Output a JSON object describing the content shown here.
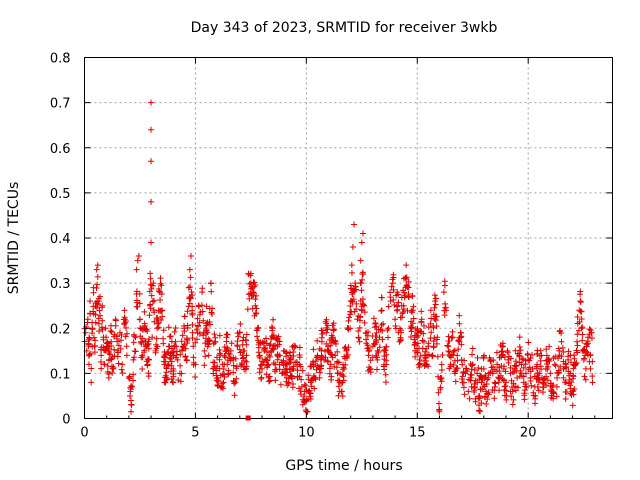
{
  "chart_data": {
    "type": "scatter",
    "title": "Day 343 of 2023, SRMTID for receiver 3wkb",
    "xlabel": "GPS time / hours",
    "ylabel": "SRMTID / TECUs",
    "xlim": [
      0,
      23.8
    ],
    "ylim": [
      0,
      0.8
    ],
    "xticks": [
      0,
      5,
      10,
      15,
      20
    ],
    "yticks": [
      0,
      0.1,
      0.2,
      0.3,
      0.4,
      0.5,
      0.6,
      0.7,
      0.8
    ],
    "xtick_labels": [
      "0",
      "5",
      "10",
      "15",
      "20"
    ],
    "ytick_labels": [
      "0",
      "0.1",
      "0.2",
      "0.3",
      "0.4",
      "0.5",
      "0.6",
      "0.7",
      "0.8"
    ],
    "grid": true,
    "marker": "+",
    "colors": {
      "series": "#e00000",
      "grid": "#a0a0a0",
      "axis": "#000000"
    },
    "series": [
      {
        "name": "SRMTID",
        "points": [
          [
            0.05,
            0.19
          ],
          [
            0.1,
            0.15
          ],
          [
            0.15,
            0.22
          ],
          [
            0.2,
            0.12
          ],
          [
            0.25,
            0.26
          ],
          [
            0.3,
            0.08
          ],
          [
            0.35,
            0.2
          ],
          [
            0.4,
            0.29
          ],
          [
            0.45,
            0.16
          ],
          [
            0.5,
            0.23
          ],
          [
            0.55,
            0.33
          ],
          [
            0.6,
            0.34
          ],
          [
            0.65,
            0.21
          ],
          [
            0.7,
            0.27
          ],
          [
            0.75,
            0.14
          ],
          [
            0.8,
            0.25
          ],
          [
            0.85,
            0.18
          ],
          [
            0.9,
            0.12
          ],
          [
            0.95,
            0.2
          ],
          [
            1.0,
            0.16
          ],
          [
            1.1,
            0.13
          ],
          [
            1.2,
            0.17
          ],
          [
            1.3,
            0.11
          ],
          [
            1.4,
            0.22
          ],
          [
            1.5,
            0.15
          ],
          [
            1.6,
            0.19
          ],
          [
            1.7,
            0.12
          ],
          [
            1.8,
            0.21
          ],
          [
            1.9,
            0.16
          ],
          [
            2.0,
            0.09
          ],
          [
            2.05,
            0.05
          ],
          [
            2.1,
            0.04
          ],
          [
            2.15,
            0.07
          ],
          [
            2.2,
            0.13
          ],
          [
            2.3,
            0.18
          ],
          [
            2.35,
            0.33
          ],
          [
            2.4,
            0.35
          ],
          [
            2.45,
            0.36
          ],
          [
            2.5,
            0.22
          ],
          [
            2.55,
            0.17
          ],
          [
            2.6,
            0.14
          ],
          [
            2.7,
            0.2
          ],
          [
            2.8,
            0.16
          ],
          [
            2.9,
            0.13
          ],
          [
            2.95,
            0.25
          ],
          [
            3.0,
            0.39
          ],
          [
            3.0,
            0.48
          ],
          [
            3.0,
            0.57
          ],
          [
            3.0,
            0.64
          ],
          [
            3.0,
            0.7
          ],
          [
            3.05,
            0.18
          ],
          [
            3.1,
            0.3
          ],
          [
            3.2,
            0.15
          ],
          [
            3.3,
            0.21
          ],
          [
            3.4,
            0.28
          ],
          [
            3.5,
            0.24
          ],
          [
            3.6,
            0.12
          ],
          [
            3.7,
            0.09
          ],
          [
            3.8,
            0.16
          ],
          [
            3.9,
            0.14
          ],
          [
            4.0,
            0.11
          ],
          [
            4.1,
            0.17
          ],
          [
            4.2,
            0.13
          ],
          [
            4.3,
            0.1
          ],
          [
            4.4,
            0.15
          ],
          [
            4.5,
            0.2
          ],
          [
            4.6,
            0.13
          ],
          [
            4.7,
            0.29
          ],
          [
            4.75,
            0.33
          ],
          [
            4.8,
            0.36
          ],
          [
            4.9,
            0.16
          ],
          [
            5.0,
            0.12
          ],
          [
            5.1,
            0.19
          ],
          [
            5.2,
            0.23
          ],
          [
            5.3,
            0.28
          ],
          [
            5.4,
            0.15
          ],
          [
            5.5,
            0.21
          ],
          [
            5.6,
            0.14
          ],
          [
            5.7,
            0.3
          ],
          [
            5.8,
            0.11
          ],
          [
            5.9,
            0.17
          ],
          [
            6.0,
            0.09
          ],
          [
            6.1,
            0.14
          ],
          [
            6.2,
            0.07
          ],
          [
            6.3,
            0.12
          ],
          [
            6.4,
            0.18
          ],
          [
            6.5,
            0.1
          ],
          [
            6.6,
            0.15
          ],
          [
            6.7,
            0.13
          ],
          [
            6.8,
            0.08
          ],
          [
            6.9,
            0.16
          ],
          [
            7.0,
            0.19
          ],
          [
            7.1,
            0.12
          ],
          [
            7.2,
            0.15
          ],
          [
            7.3,
            0.14
          ],
          [
            7.4,
            0.32
          ],
          [
            7.5,
            0.3
          ],
          [
            7.6,
            0.28
          ],
          [
            7.7,
            0.25
          ],
          [
            7.8,
            0.2
          ],
          [
            7.9,
            0.14
          ],
          [
            8.0,
            0.11
          ],
          [
            8.1,
            0.17
          ],
          [
            8.2,
            0.13
          ],
          [
            8.3,
            0.09
          ],
          [
            8.4,
            0.15
          ],
          [
            8.5,
            0.18
          ],
          [
            8.6,
            0.12
          ],
          [
            8.7,
            0.16
          ],
          [
            8.8,
            0.14
          ],
          [
            8.9,
            0.1
          ],
          [
            9.0,
            0.15
          ],
          [
            9.1,
            0.12
          ],
          [
            9.2,
            0.08
          ],
          [
            9.3,
            0.13
          ],
          [
            9.4,
            0.11
          ],
          [
            9.5,
            0.16
          ],
          [
            9.6,
            0.09
          ],
          [
            9.7,
            0.12
          ],
          [
            9.8,
            0.07
          ],
          [
            9.9,
            0.05
          ],
          [
            10.0,
            0.04
          ],
          [
            10.1,
            0.06
          ],
          [
            10.2,
            0.08
          ],
          [
            10.3,
            0.12
          ],
          [
            10.4,
            0.09
          ],
          [
            10.5,
            0.14
          ],
          [
            10.6,
            0.11
          ],
          [
            10.7,
            0.17
          ],
          [
            10.8,
            0.13
          ],
          [
            10.9,
            0.19
          ],
          [
            11.0,
            0.15
          ],
          [
            11.1,
            0.12
          ],
          [
            11.2,
            0.18
          ],
          [
            11.3,
            0.14
          ],
          [
            11.4,
            0.1
          ],
          [
            11.5,
            0.08
          ],
          [
            11.6,
            0.06
          ],
          [
            11.7,
            0.11
          ],
          [
            11.8,
            0.15
          ],
          [
            11.9,
            0.2
          ],
          [
            12.0,
            0.26
          ],
          [
            12.05,
            0.34
          ],
          [
            12.1,
            0.38
          ],
          [
            12.15,
            0.43
          ],
          [
            12.2,
            0.3
          ],
          [
            12.3,
            0.22
          ],
          [
            12.4,
            0.17
          ],
          [
            12.45,
            0.35
          ],
          [
            12.5,
            0.39
          ],
          [
            12.55,
            0.41
          ],
          [
            12.6,
            0.25
          ],
          [
            12.7,
            0.19
          ],
          [
            12.8,
            0.14
          ],
          [
            12.9,
            0.11
          ],
          [
            13.0,
            0.16
          ],
          [
            13.1,
            0.21
          ],
          [
            13.2,
            0.13
          ],
          [
            13.3,
            0.18
          ],
          [
            13.4,
            0.24
          ],
          [
            13.5,
            0.15
          ],
          [
            13.6,
            0.12
          ],
          [
            13.7,
            0.2
          ],
          [
            13.8,
            0.26
          ],
          [
            13.9,
            0.3
          ],
          [
            14.0,
            0.22
          ],
          [
            14.1,
            0.28
          ],
          [
            14.2,
            0.17
          ],
          [
            14.3,
            0.25
          ],
          [
            14.4,
            0.31
          ],
          [
            14.5,
            0.34
          ],
          [
            14.6,
            0.27
          ],
          [
            14.7,
            0.2
          ],
          [
            14.8,
            0.24
          ],
          [
            14.9,
            0.15
          ],
          [
            15.0,
            0.19
          ],
          [
            15.1,
            0.13
          ],
          [
            15.2,
            0.22
          ],
          [
            15.3,
            0.17
          ],
          [
            15.4,
            0.12
          ],
          [
            15.5,
            0.16
          ],
          [
            15.6,
            0.21
          ],
          [
            15.7,
            0.14
          ],
          [
            15.8,
            0.26
          ],
          [
            15.9,
            0.18
          ],
          [
            16.0,
            0.02
          ],
          [
            16.05,
            0.09
          ],
          [
            16.1,
            0.12
          ],
          [
            16.2,
            0.28
          ],
          [
            16.3,
            0.24
          ],
          [
            16.4,
            0.16
          ],
          [
            16.5,
            0.12
          ],
          [
            16.6,
            0.18
          ],
          [
            16.7,
            0.1
          ],
          [
            16.8,
            0.14
          ],
          [
            16.9,
            0.21
          ],
          [
            17.0,
            0.13
          ],
          [
            17.1,
            0.08
          ],
          [
            17.2,
            0.11
          ],
          [
            17.3,
            0.06
          ],
          [
            17.4,
            0.09
          ],
          [
            17.5,
            0.12
          ],
          [
            17.6,
            0.07
          ],
          [
            17.7,
            0.1
          ],
          [
            17.8,
            0.05
          ],
          [
            17.9,
            0.08
          ],
          [
            18.0,
            0.11
          ],
          [
            18.1,
            0.06
          ],
          [
            18.2,
            0.09
          ],
          [
            18.3,
            0.13
          ],
          [
            18.4,
            0.1
          ],
          [
            18.5,
            0.07
          ],
          [
            18.6,
            0.12
          ],
          [
            18.7,
            0.09
          ],
          [
            18.8,
            0.14
          ],
          [
            18.9,
            0.11
          ],
          [
            19.0,
            0.08
          ],
          [
            19.1,
            0.13
          ],
          [
            19.2,
            0.1
          ],
          [
            19.3,
            0.06
          ],
          [
            19.4,
            0.11
          ],
          [
            19.5,
            0.09
          ],
          [
            19.6,
            0.14
          ],
          [
            19.7,
            0.12
          ],
          [
            19.8,
            0.08
          ],
          [
            19.9,
            0.1
          ],
          [
            20.0,
            0.13
          ],
          [
            20.1,
            0.09
          ],
          [
            20.2,
            0.11
          ],
          [
            20.3,
            0.07
          ],
          [
            20.4,
            0.12
          ],
          [
            20.5,
            0.1
          ],
          [
            20.6,
            0.14
          ],
          [
            20.7,
            0.08
          ],
          [
            20.8,
            0.11
          ],
          [
            20.9,
            0.13
          ],
          [
            21.0,
            0.1
          ],
          [
            21.1,
            0.07
          ],
          [
            21.2,
            0.12
          ],
          [
            21.3,
            0.09
          ],
          [
            21.4,
            0.15
          ],
          [
            21.5,
            0.17
          ],
          [
            21.6,
            0.11
          ],
          [
            21.7,
            0.08
          ],
          [
            21.8,
            0.13
          ],
          [
            21.9,
            0.1
          ],
          [
            22.0,
            0.06
          ],
          [
            22.1,
            0.12
          ],
          [
            22.2,
            0.17
          ],
          [
            22.3,
            0.24
          ],
          [
            22.35,
            0.26
          ],
          [
            22.4,
            0.2
          ],
          [
            22.5,
            0.15
          ],
          [
            22.6,
            0.11
          ],
          [
            22.7,
            0.18
          ],
          [
            22.8,
            0.14
          ],
          [
            22.85,
            0.19
          ],
          [
            22.9,
            0.08
          ]
        ],
        "noise_points": 1400
      }
    ],
    "annotations": [
      {
        "type": "square-marker",
        "x": 7.4,
        "y": 0.0,
        "note": "small red square at baseline"
      }
    ]
  }
}
